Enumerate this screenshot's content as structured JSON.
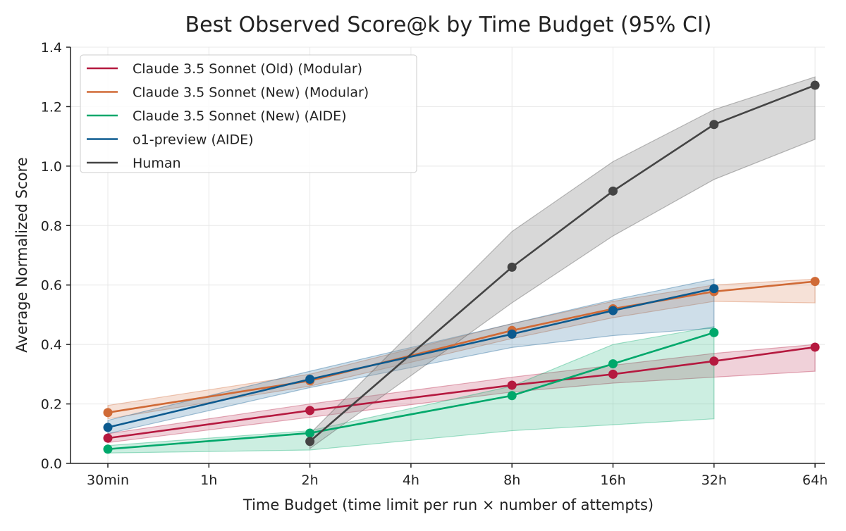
{
  "chart_data": {
    "type": "line",
    "title": "Best Observed Score@k by Time Budget (95% CI)",
    "xlabel": "Time Budget (time limit per run × number of attempts)",
    "ylabel": "Average Normalized Score",
    "categories": [
      "30min",
      "1h",
      "2h",
      "4h",
      "8h",
      "16h",
      "32h",
      "64h"
    ],
    "ylim": [
      0,
      1.4
    ],
    "yticks": [
      "0.0",
      "0.2",
      "0.4",
      "0.6",
      "0.8",
      "1.0",
      "1.2",
      "1.4"
    ],
    "grid": true,
    "legend_position": "top-left",
    "series": [
      {
        "name": "Claude 3.5 Sonnet (Old) (Modular)",
        "color": "#b5193f",
        "x": [
          "30min",
          "2h",
          "8h",
          "16h",
          "32h",
          "64h"
        ],
        "values": [
          0.085,
          0.178,
          0.263,
          0.3,
          0.344,
          0.391
        ],
        "ci_low": [
          0.07,
          0.155,
          0.24,
          0.27,
          0.29,
          0.31
        ],
        "ci_high": [
          0.1,
          0.2,
          0.29,
          0.33,
          0.37,
          0.4
        ]
      },
      {
        "name": "Claude 3.5 Sonnet (New) (Modular)",
        "color": "#d06a36",
        "x": [
          "30min",
          "2h",
          "8h",
          "16h",
          "32h",
          "64h"
        ],
        "values": [
          0.171,
          0.278,
          0.447,
          0.52,
          0.578,
          0.612
        ],
        "ci_low": [
          0.15,
          0.26,
          0.42,
          0.49,
          0.545,
          0.54
        ],
        "ci_high": [
          0.195,
          0.3,
          0.47,
          0.545,
          0.6,
          0.62
        ]
      },
      {
        "name": "Claude 3.5 Sonnet (New) (AIDE)",
        "color": "#00a86b",
        "x": [
          "30min",
          "2h",
          "8h",
          "16h",
          "32h"
        ],
        "values": [
          0.048,
          0.102,
          0.228,
          0.335,
          0.44
        ],
        "ci_low": [
          0.035,
          0.045,
          0.11,
          0.13,
          0.15
        ],
        "ci_high": [
          0.06,
          0.11,
          0.26,
          0.4,
          0.46
        ]
      },
      {
        "name": "o1-preview (AIDE)",
        "color": "#0c5a8f",
        "x": [
          "30min",
          "2h",
          "8h",
          "16h",
          "32h"
        ],
        "values": [
          0.121,
          0.283,
          0.435,
          0.514,
          0.588
        ],
        "ci_low": [
          0.1,
          0.255,
          0.39,
          0.43,
          0.455
        ],
        "ci_high": [
          0.145,
          0.31,
          0.47,
          0.55,
          0.62
        ]
      },
      {
        "name": "Human",
        "color": "#444444",
        "x": [
          "2h",
          "8h",
          "16h",
          "32h",
          "64h"
        ],
        "values": [
          0.074,
          0.66,
          0.916,
          1.14,
          1.272
        ],
        "ci_low": [
          0.05,
          0.54,
          0.765,
          0.955,
          1.09
        ],
        "ci_high": [
          0.1,
          0.78,
          1.015,
          1.19,
          1.3
        ]
      }
    ]
  }
}
